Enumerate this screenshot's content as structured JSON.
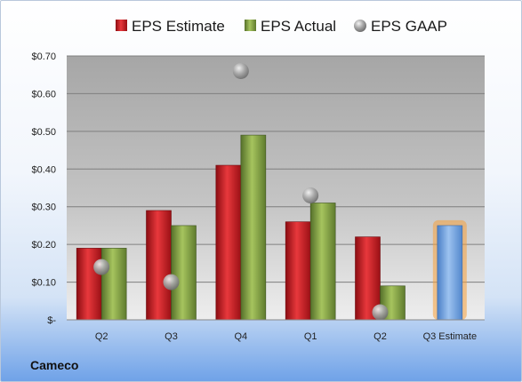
{
  "company": "Cameco",
  "chart_data": {
    "type": "bar",
    "categories": [
      "Q2",
      "Q3",
      "Q4",
      "Q1",
      "Q2",
      "Q3 Estimate"
    ],
    "series": [
      {
        "name": "EPS Estimate",
        "values": [
          0.19,
          0.29,
          0.41,
          0.26,
          0.22,
          null
        ]
      },
      {
        "name": "EPS Actual",
        "values": [
          0.19,
          0.25,
          0.49,
          0.31,
          0.09,
          null
        ]
      },
      {
        "name": "EPS GAAP",
        "marker": "circle",
        "values": [
          0.14,
          0.1,
          0.66,
          0.33,
          0.02,
          null
        ]
      }
    ],
    "highlight": {
      "category": "Q3 Estimate",
      "value": 0.25
    },
    "yticks": [
      0,
      0.1,
      0.2,
      0.3,
      0.4,
      0.5,
      0.6,
      0.7
    ],
    "ytick_labels": [
      "$-",
      "$0.10",
      "$0.20",
      "$0.30",
      "$0.40",
      "$0.50",
      "$0.60",
      "$0.70"
    ],
    "ylim": [
      0,
      0.7
    ],
    "grid": true,
    "legend": "top-center",
    "colors": {
      "estimate": "#c0181e",
      "actual": "#7a9a3a",
      "gaap": "#a8a8a8",
      "highlight": "#6b9edb",
      "highlight_glow": "#f5a03c"
    }
  }
}
